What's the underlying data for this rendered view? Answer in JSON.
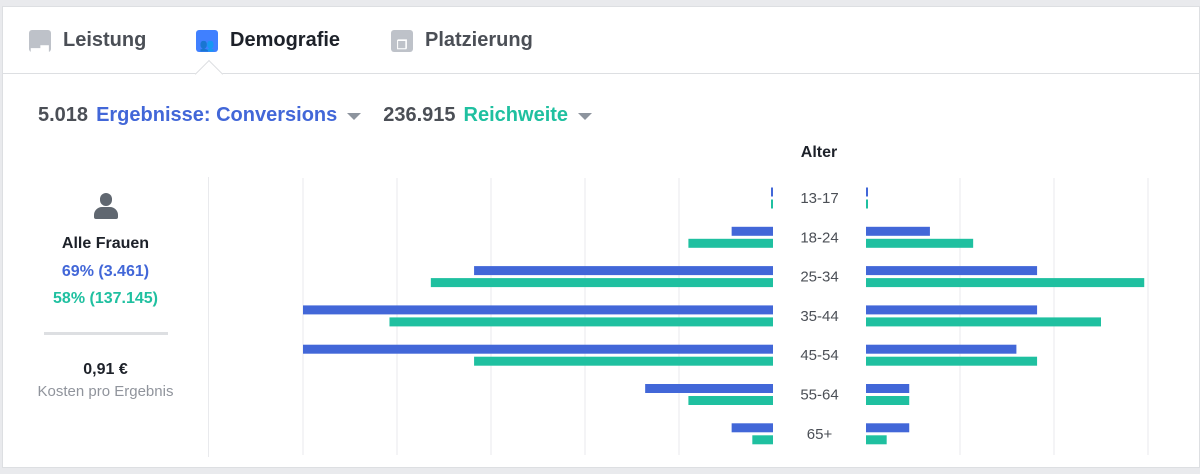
{
  "tabs": [
    {
      "label": "Leistung",
      "icon": "bar-chart-icon"
    },
    {
      "label": "Demografie",
      "icon": "people-icon",
      "active": true
    },
    {
      "label": "Platzierung",
      "icon": "placement-icon"
    }
  ],
  "metrics": {
    "results_value": "5.018",
    "results_label": "Ergebnisse: Conversions",
    "reach_value": "236.915",
    "reach_label": "Reichweite"
  },
  "summary": {
    "title": "Alle Frauen",
    "results": "69% (3.461)",
    "reach": "58% (137.145)",
    "cost": "0,91 €",
    "cost_label": "Kosten pro Ergebnis"
  },
  "colors": {
    "results": "#4267d8",
    "reach": "#1fc0a0"
  },
  "chart_data": {
    "type": "bar",
    "title": "Alter",
    "unit": "percent",
    "categories": [
      "13-17",
      "18-24",
      "25-34",
      "35-44",
      "45-54",
      "55-64",
      "65+"
    ],
    "women": {
      "results": [
        0.1,
        2.2,
        15.9,
        25,
        25,
        6.8,
        2.2
      ],
      "reach": [
        0.1,
        4.5,
        18.2,
        20.4,
        15.9,
        4.5,
        1.1
      ]
    },
    "men": {
      "results": [
        0.1,
        3.4,
        9.1,
        9.1,
        8.0,
        2.3,
        2.3
      ],
      "reach": [
        0.1,
        5.7,
        14.8,
        12.5,
        9.1,
        2.3,
        1.1
      ]
    },
    "grid_step": 5
  }
}
